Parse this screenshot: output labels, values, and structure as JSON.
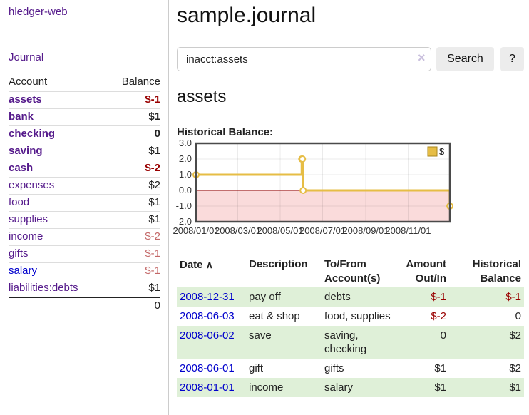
{
  "app": {
    "brand": "hledger-web"
  },
  "colors": {
    "link_purple": "#551a8b",
    "link_blue": "#0000cc",
    "negative_strong": "#990000",
    "negative_muted": "#c36767",
    "row_stripe_green": "#dff0d8",
    "chart_gold": "#e6bd45",
    "chart_negative_pink": "#fadbdb",
    "chart_zero_line": "#8b0000"
  },
  "sidebar": {
    "journal_label": "Journal",
    "accounts_table": {
      "headers": {
        "account": "Account",
        "balance": "Balance"
      },
      "rows": [
        {
          "account": "assets",
          "balance": "$-1"
        },
        {
          "account": "bank",
          "balance": "$1"
        },
        {
          "account": "checking",
          "balance": "0"
        },
        {
          "account": "saving",
          "balance": "$1"
        },
        {
          "account": "cash",
          "balance": "$-2"
        },
        {
          "account": "expenses",
          "balance": "$2"
        },
        {
          "account": "food",
          "balance": "$1"
        },
        {
          "account": "supplies",
          "balance": "$1"
        },
        {
          "account": "income",
          "balance": "$-2"
        },
        {
          "account": "gifts",
          "balance": "$-1"
        },
        {
          "account": "salary",
          "balance": "$-1"
        },
        {
          "account": "liabilities:debts",
          "balance": "$1"
        }
      ],
      "total": "0"
    }
  },
  "main": {
    "title": "sample.journal",
    "search": {
      "value": "inacct:assets",
      "clear_icon": "×",
      "search_button": "Search",
      "help_button": "?"
    },
    "section_title": "assets",
    "chart_title": "Historical Balance:",
    "register_table": {
      "headers": {
        "date": "Date",
        "description": "Description",
        "accounts": "To/From Account(s)",
        "amount": "Amount Out/In",
        "balance": "Historical Balance"
      },
      "sort_icon": "∧",
      "rows": [
        {
          "date": "2008-12-31",
          "description": "pay off",
          "accounts": "debts",
          "amount": "$-1",
          "balance": "$-1"
        },
        {
          "date": "2008-06-03",
          "description": "eat & shop",
          "accounts": "food, supplies",
          "amount": "$-2",
          "balance": "0"
        },
        {
          "date": "2008-06-02",
          "description": "save",
          "accounts": "saving, checking",
          "amount": "0",
          "balance": "$2"
        },
        {
          "date": "2008-06-01",
          "description": "gift",
          "accounts": "gifts",
          "amount": "$1",
          "balance": "$2"
        },
        {
          "date": "2008-01-01",
          "description": "income",
          "accounts": "salary",
          "amount": "$1",
          "balance": "$1"
        }
      ]
    }
  },
  "chart_data": {
    "type": "line",
    "step": true,
    "title": "Historical Balance:",
    "series": [
      {
        "name": "$",
        "color": "#e6bd45",
        "points": [
          [
            "2008-01-01",
            1
          ],
          [
            "2008-06-01",
            2
          ],
          [
            "2008-06-02",
            2
          ],
          [
            "2008-06-03",
            0
          ],
          [
            "2008-12-31",
            -1
          ]
        ]
      }
    ],
    "xlim": [
      "2008-01-01",
      "2008-12-31"
    ],
    "ylim": [
      -2,
      3
    ],
    "x_ticks": [
      "2008/01/01",
      "2008/03/01",
      "2008/05/01",
      "2008/07/01",
      "2008/09/01",
      "2008/11/01"
    ],
    "y_ticks": [
      "3.0",
      "2.0",
      "1.0",
      "0.0",
      "-1.0",
      "-2.0"
    ],
    "grid": true,
    "negative_fill": "#fadbdb",
    "zero_line_color": "#8b0000",
    "legend": {
      "label": "$",
      "position": "top-right"
    }
  }
}
